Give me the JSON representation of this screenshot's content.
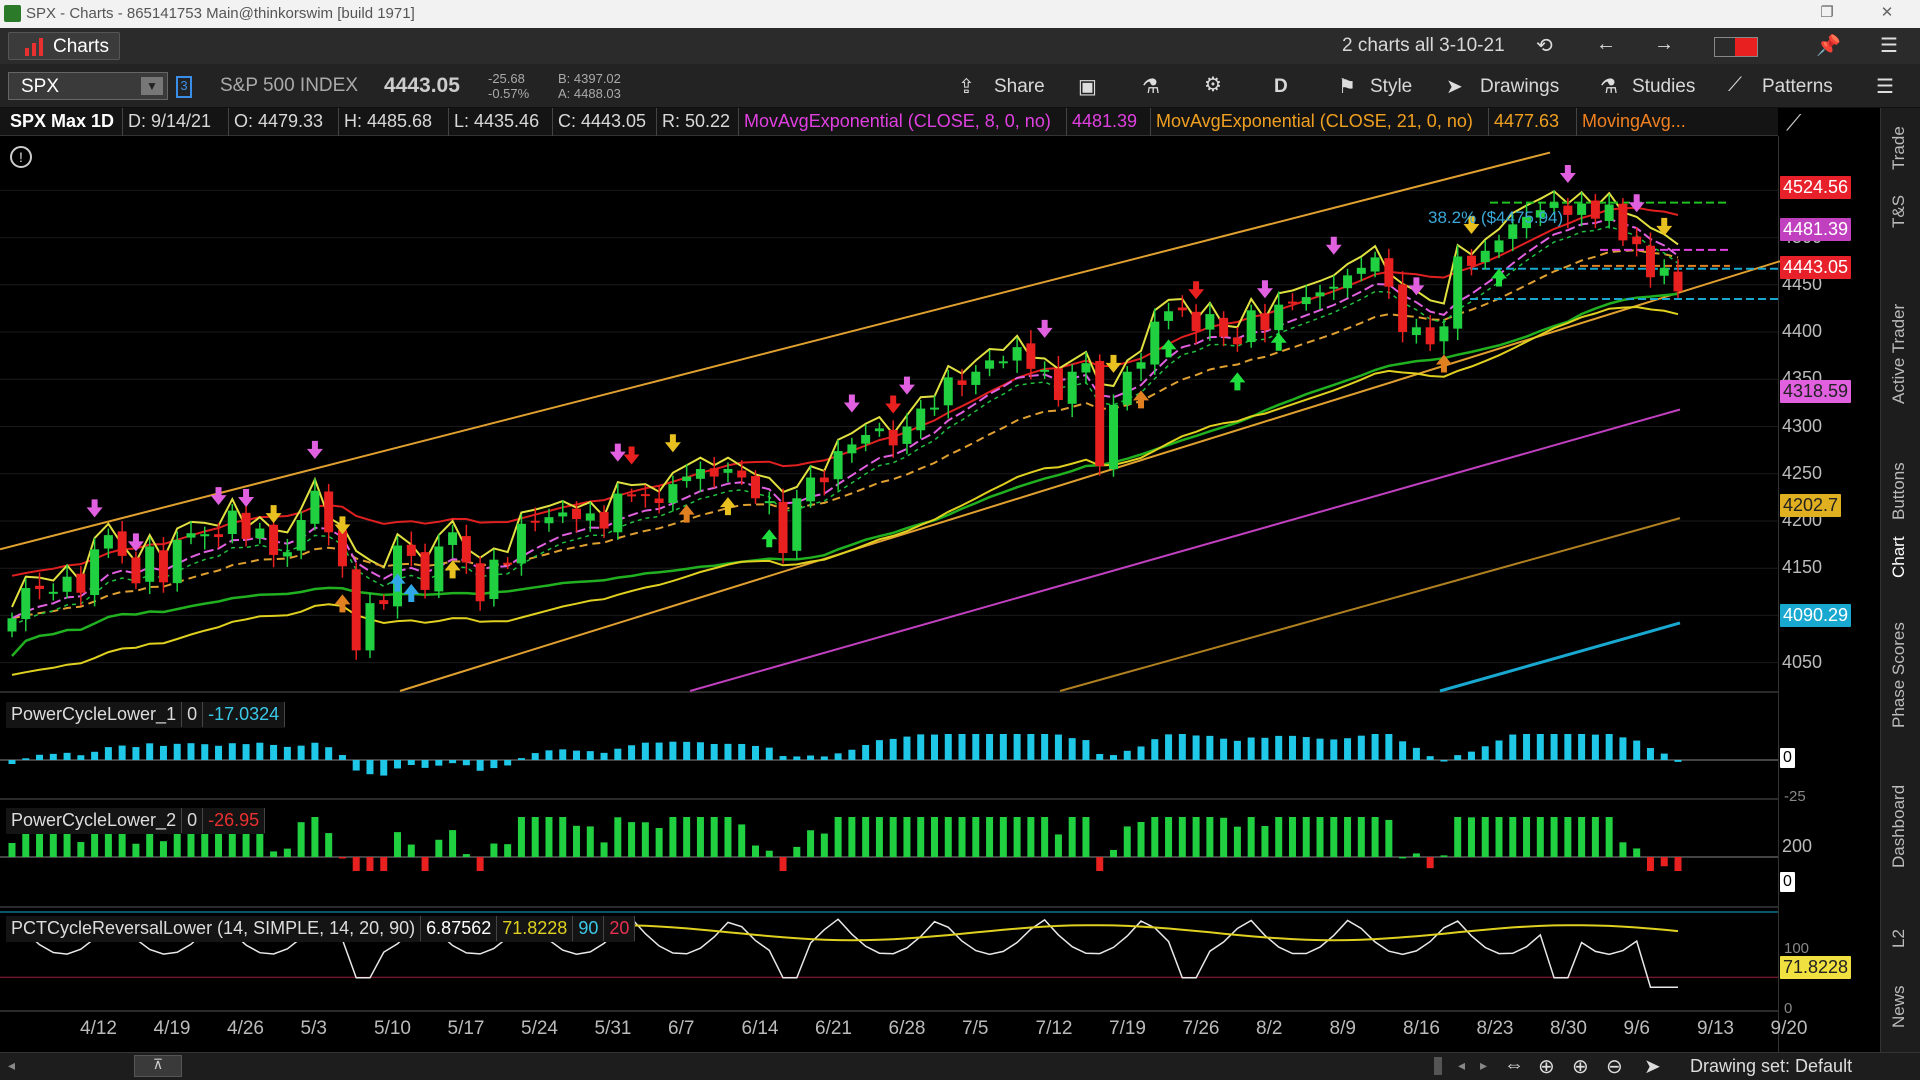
{
  "window": {
    "title": "SPX - Charts - 865141753 Main@thinkorswim [build 1971]"
  },
  "toolbar": {
    "charts_tab": "Charts",
    "grid_label": "2 charts all 3-10-21"
  },
  "symbolbar": {
    "symbol": "SPX",
    "name": "S&P 500 INDEX",
    "last": "4443.05",
    "change": "-25.68",
    "change_pct": "-0.57%",
    "bid": "B: 4397.02",
    "ask": "A: 4488.03",
    "share": "Share",
    "aggregation": "D",
    "style": "Style",
    "drawings": "Drawings",
    "studies": "Studies",
    "patterns": "Patterns"
  },
  "infobar": {
    "title": "SPX Max 1D",
    "date": "D: 9/14/21",
    "open": "O: 4479.33",
    "high": "H: 4485.68",
    "low": "L: 4435.46",
    "close": "C: 4443.05",
    "range": "R: 50.22",
    "ema8": "MovAvgExponential (CLOSE, 8, 0, no)",
    "ema8_val": "4481.39",
    "ema21": "MovAvgExponential (CLOSE, 21, 0, no)",
    "ema21_val": "4477.63",
    "mavg": "MovingAvg..."
  },
  "annotation": "38.2% ($4475.94)",
  "price_labels": {
    "p1": "4524.56",
    "p2": "4481.39",
    "p3": "4443.05",
    "p4": "4318.59",
    "p5": "4202.7",
    "p6": "4090.29"
  },
  "colors": {
    "p1": "#e8202a",
    "p2": "#c040c0",
    "p3": "#e8202a",
    "p4": "#c040c0",
    "p5": "#e0b020",
    "p6": "#18a8d0"
  },
  "y_ticks": [
    "4550",
    "4500",
    "4450",
    "4400",
    "4350",
    "4300",
    "4250",
    "4200",
    "4150",
    "4100",
    "4050"
  ],
  "x_ticks": [
    "4/12",
    "4/19",
    "4/26",
    "5/3",
    "5/10",
    "5/17",
    "5/24",
    "5/31",
    "6/7",
    "6/14",
    "6/21",
    "6/28",
    "7/5",
    "7/12",
    "7/19",
    "7/26",
    "8/2",
    "8/9",
    "8/16",
    "8/23",
    "8/30",
    "9/6",
    "9/13",
    "9/20"
  ],
  "studies": {
    "s1": {
      "name": "PowerCycleLower_1",
      "zero": "0",
      "val": "-17.0324",
      "right": "0",
      "right2": "-25"
    },
    "s2": {
      "name": "PowerCycleLower_2",
      "zero": "0",
      "val": "-26.95",
      "right": "0",
      "tick200": "200"
    },
    "s3": {
      "name": "PCTCycleReversalLower (14, SIMPLE, 14, 20, 90)",
      "v1": "6.87562",
      "v2": "71.8228",
      "v3": "90",
      "v4": "20",
      "label": "71.8228",
      "tick100": "100",
      "tick0": "0"
    }
  },
  "side_tabs": [
    "Trade",
    "T&S",
    "Active Trader",
    "Buttons",
    "Chart",
    "Phase Scores",
    "Dashboard",
    "L2",
    "News"
  ],
  "bottom": {
    "drawing_set": "Drawing set: Default"
  },
  "chart_data": {
    "type": "candlestick",
    "title": "SPX Max 1D",
    "x_start": "4/8/21",
    "ylim": [
      4020,
      4580
    ],
    "closes": [
      4097,
      4129,
      4128,
      4125,
      4141,
      4124,
      4170,
      4185,
      4163,
      4134,
      4173,
      4135,
      4180,
      4187,
      4186,
      4183,
      4211,
      4181,
      4192,
      4164,
      4167,
      4201,
      4232,
      4188,
      4152,
      4063,
      4113,
      4112,
      4174,
      4163,
      4127,
      4173,
      4188,
      4156,
      4115,
      4159,
      4155,
      4197,
      4200,
      4204,
      4209,
      4202,
      4208,
      4192,
      4229,
      4226,
      4227,
      4219,
      4239,
      4247,
      4255,
      4247,
      4255,
      4246,
      4224,
      4221,
      4166,
      4224,
      4246,
      4241,
      4274,
      4281,
      4291,
      4298,
      4280,
      4300,
      4319,
      4320,
      4352,
      4344,
      4358,
      4370,
      4369,
      4384,
      4361,
      4360,
      4328,
      4358,
      4367,
      4258,
      4323,
      4358,
      4368,
      4411,
      4422,
      4423,
      4401,
      4419,
      4395,
      4387,
      4423,
      4402,
      4429,
      4432,
      4437,
      4442,
      4448,
      4460,
      4468,
      4479,
      4448,
      4400,
      4405,
      4387,
      4406,
      4480,
      4470,
      4486,
      4497,
      4514,
      4522,
      4529,
      4537,
      4524,
      4536,
      4520,
      4535,
      4497,
      4493,
      4458,
      4468,
      4443
    ]
  }
}
